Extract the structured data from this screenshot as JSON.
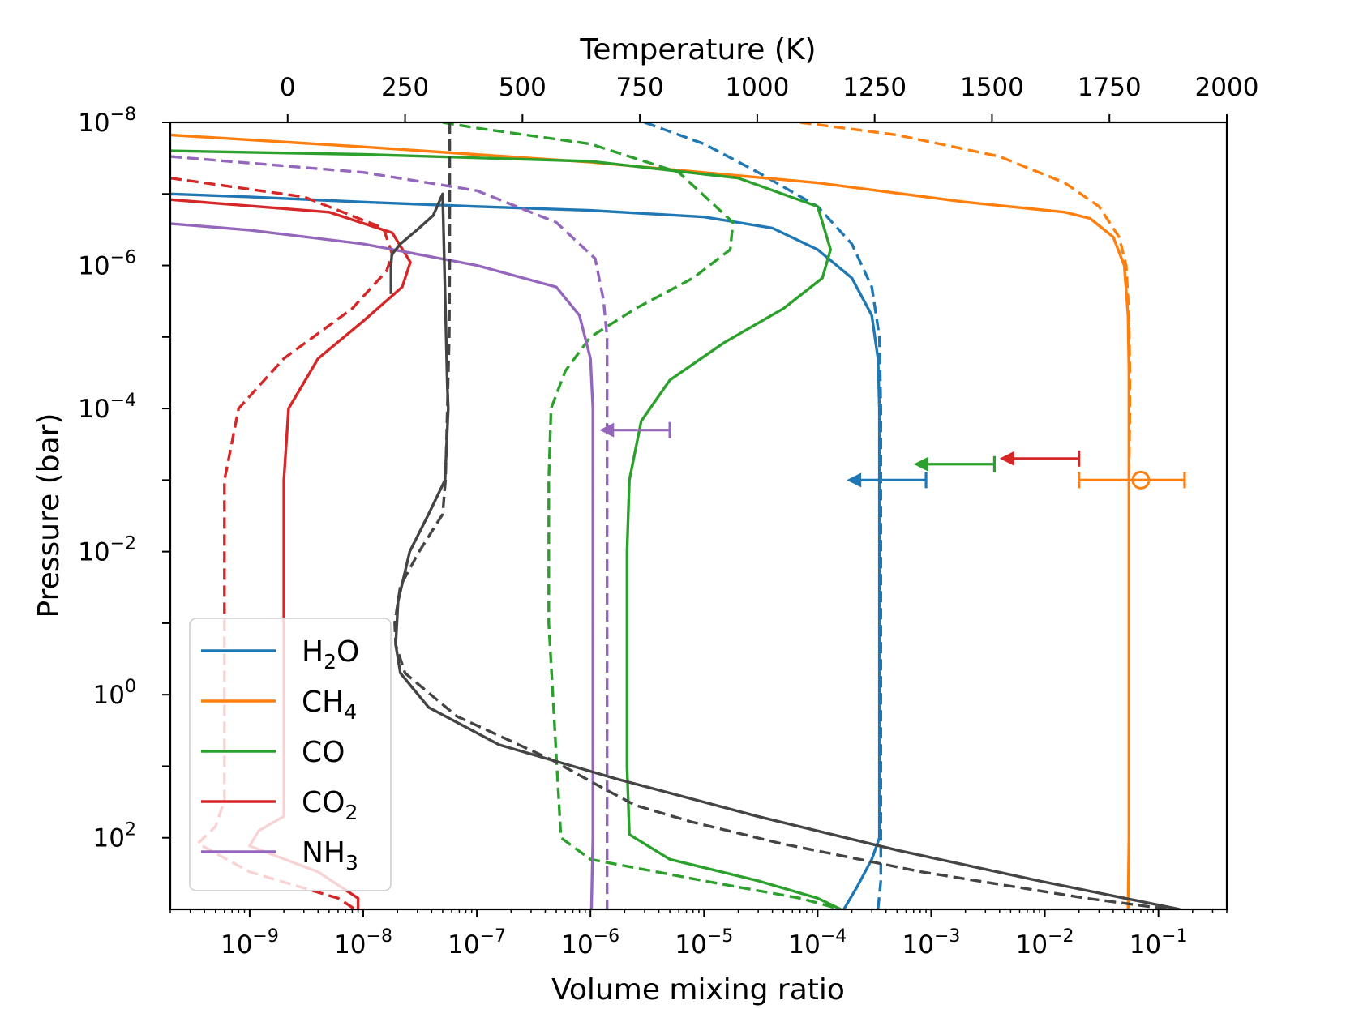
{
  "chart_data": {
    "type": "line",
    "title": "",
    "xlabel": "Volume  mixing ratio",
    "ylabel": "Pressure (bar)",
    "top_xlabel": "Temperature (K)",
    "xscale": "log",
    "yscale": "log",
    "xlim": [
      2e-10,
      0.4
    ],
    "ylim": [
      1000,
      1e-08
    ],
    "top_xlim": [
      -250,
      2000
    ],
    "x_tick_labels": [
      {
        "value": 1e-09,
        "base": "10",
        "exp": "−9"
      },
      {
        "value": 1e-08,
        "base": "10",
        "exp": "−8"
      },
      {
        "value": 1e-07,
        "base": "10",
        "exp": "−7"
      },
      {
        "value": 1e-06,
        "base": "10",
        "exp": "−6"
      },
      {
        "value": 1e-05,
        "base": "10",
        "exp": "−5"
      },
      {
        "value": 0.0001,
        "base": "10",
        "exp": "−4"
      },
      {
        "value": 0.001,
        "base": "10",
        "exp": "−3"
      },
      {
        "value": 0.01,
        "base": "10",
        "exp": "−2"
      },
      {
        "value": 0.1,
        "base": "10",
        "exp": "−1"
      }
    ],
    "y_tick_labels": [
      {
        "value": 1e-08,
        "base": "10",
        "exp": "−8"
      },
      {
        "value": 1e-06,
        "base": "10",
        "exp": "−6"
      },
      {
        "value": 0.0001,
        "base": "10",
        "exp": "−4"
      },
      {
        "value": 0.01,
        "base": "10",
        "exp": "−2"
      },
      {
        "value": 1,
        "base": "10",
        "exp": "0"
      },
      {
        "value": 100,
        "base": "10",
        "exp": "2"
      }
    ],
    "top_tick_labels": [
      {
        "value": 0,
        "label": "0"
      },
      {
        "value": 250,
        "label": "250"
      },
      {
        "value": 500,
        "label": "500"
      },
      {
        "value": 750,
        "label": "750"
      },
      {
        "value": 1000,
        "label": "1000"
      },
      {
        "value": 1250,
        "label": "1250"
      },
      {
        "value": 1500,
        "label": "1500"
      },
      {
        "value": 1750,
        "label": "1750"
      },
      {
        "value": 2000,
        "label": "2000"
      }
    ],
    "legend": {
      "position": "lower-left",
      "entries": [
        {
          "name": "H2O",
          "main": "H",
          "sub": "2",
          "rest": "O",
          "color": "#1f77b4"
        },
        {
          "name": "CH4",
          "main": "CH",
          "sub": "4",
          "rest": "",
          "color": "#ff7f0e"
        },
        {
          "name": "CO",
          "main": "CO",
          "sub": "",
          "rest": "",
          "color": "#2ca02c"
        },
        {
          "name": "CO2",
          "main": "CO",
          "sub": "2",
          "rest": "",
          "color": "#d62728"
        },
        {
          "name": "NH3",
          "main": "NH",
          "sub": "3",
          "rest": "",
          "color": "#9467bd"
        }
      ]
    },
    "series": [
      {
        "name": "H2O",
        "style": "solid",
        "color": "#1f77b4",
        "x": [
          2e-10,
          1e-09,
          1e-08,
          1e-07,
          1e-06,
          1e-05,
          4e-05,
          0.0001,
          0.0002,
          0.0003,
          0.00034,
          0.00035,
          0.00035,
          0.00035,
          0.00035,
          0.0003,
          0.00022,
          0.00017
        ],
        "p": [
          1e-07,
          1.1e-07,
          1.3e-07,
          1.5e-07,
          1.7e-07,
          2.1e-07,
          3e-07,
          6e-07,
          1.5e-06,
          5e-06,
          2e-05,
          0.0001,
          0.01,
          1,
          100,
          200,
          500,
          1000
        ]
      },
      {
        "name": "H2O",
        "style": "dashed",
        "color": "#1f77b4",
        "x": [
          3e-06,
          1e-05,
          3e-05,
          0.0001,
          0.0002,
          0.0003,
          0.00035,
          0.00036,
          0.00036,
          0.00036,
          0.00036,
          0.00036,
          0.00034
        ],
        "p": [
          1e-08,
          2e-08,
          5e-08,
          1.5e-07,
          5e-07,
          2e-06,
          1e-05,
          0.0001,
          0.01,
          1,
          100,
          400,
          1000
        ]
      },
      {
        "name": "CH4",
        "style": "solid",
        "color": "#ff7f0e",
        "x": [
          2e-10,
          1e-08,
          1e-06,
          0.0001,
          0.002,
          0.015,
          0.025,
          0.04,
          0.05,
          0.054,
          0.055,
          0.055,
          0.055,
          0.055,
          0.054
        ],
        "p": [
          1.5e-08,
          2.2e-08,
          3.6e-08,
          7e-08,
          1.3e-07,
          1.8e-07,
          2.2e-07,
          4e-07,
          1e-06,
          5e-06,
          3e-05,
          0.001,
          1,
          100,
          1000
        ]
      },
      {
        "name": "CH4",
        "style": "dashed",
        "color": "#ff7f0e",
        "x": [
          7e-05,
          0.0005,
          0.004,
          0.015,
          0.03,
          0.045,
          0.052,
          0.055,
          0.056,
          0.056,
          0.055
        ],
        "p": [
          1e-08,
          1.5e-08,
          3e-08,
          7e-08,
          1.5e-07,
          4e-07,
          1e-06,
          5e-06,
          3e-05,
          0.0001,
          0.001
        ]
      },
      {
        "name": "CO",
        "style": "solid",
        "color": "#2ca02c",
        "x": [
          2e-10,
          1e-08,
          1e-06,
          2e-05,
          0.0001,
          0.00013,
          0.00011,
          5e-05,
          1.5e-05,
          5e-06,
          2.8e-06,
          2.2e-06,
          2.1e-06,
          2.1e-06,
          2.2e-06,
          5e-06,
          3e-05,
          0.0001,
          0.00016
        ],
        "p": [
          2.5e-08,
          2.8e-08,
          3.5e-08,
          6e-08,
          1.5e-07,
          6e-07,
          1.5e-06,
          4e-06,
          1.2e-05,
          4e-05,
          0.00015,
          0.001,
          0.01,
          10,
          90,
          200,
          400,
          700,
          1000
        ]
      },
      {
        "name": "CO",
        "style": "dashed",
        "color": "#2ca02c",
        "x": [
          5e-08,
          1e-07,
          1e-06,
          6e-06,
          1.8e-05,
          1.7e-05,
          8e-06,
          2.5e-06,
          1e-06,
          6e-07,
          4.5e-07,
          4.3e-07,
          4.3e-07,
          5.5e-07,
          1e-06,
          1e-05,
          7e-05,
          0.00016
        ],
        "p": [
          1e-08,
          1.2e-08,
          2e-08,
          5e-08,
          2.5e-07,
          6e-07,
          1.5e-06,
          4e-06,
          1e-05,
          3e-05,
          0.0001,
          0.001,
          0.1,
          100,
          200,
          400,
          700,
          1000
        ]
      },
      {
        "name": "CO2",
        "style": "solid",
        "color": "#d62728",
        "x": [
          2e-10,
          5e-09,
          1.8e-08,
          2.6e-08,
          2.2e-08,
          1e-08,
          4e-09,
          2.2e-09,
          2e-09,
          2e-09,
          2e-09,
          1.2e-09,
          1e-09,
          4e-09,
          9e-09,
          9e-09
        ],
        "p": [
          1.2e-07,
          1.8e-07,
          3.5e-07,
          9e-07,
          2e-06,
          6e-06,
          2e-05,
          0.0001,
          0.001,
          0.1,
          50,
          80,
          130,
          300,
          700,
          1000
        ]
      },
      {
        "name": "CO2",
        "style": "dashed",
        "color": "#d62728",
        "x": [
          2e-10,
          3e-09,
          1.5e-08,
          1.8e-08,
          1.6e-08,
          8e-09,
          2e-09,
          8e-10,
          6e-10,
          6e-10,
          6e-10,
          5e-10,
          3.5e-10,
          1e-09,
          6e-09,
          8.5e-09
        ],
        "p": [
          6e-08,
          1.1e-07,
          3e-07,
          7e-07,
          1.2e-06,
          4e-06,
          2e-05,
          0.0001,
          0.001,
          0.1,
          30,
          70,
          120,
          300,
          700,
          1000
        ]
      },
      {
        "name": "NH3",
        "style": "solid",
        "color": "#9467bd",
        "x": [
          2e-10,
          1e-09,
          1e-08,
          1e-07,
          5e-07,
          8e-07,
          1e-06,
          1.05e-06,
          1.05e-06,
          1.05e-06,
          1.05e-06,
          1.02e-06
        ],
        "p": [
          2.6e-07,
          3.2e-07,
          5e-07,
          1e-06,
          2e-06,
          5e-06,
          2e-05,
          0.0001,
          0.01,
          1,
          100,
          1000
        ]
      },
      {
        "name": "NH3",
        "style": "dashed",
        "color": "#9467bd",
        "x": [
          2e-10,
          1e-08,
          1e-07,
          5e-07,
          1.1e-06,
          1.3e-06,
          1.4e-06,
          1.4e-06,
          1.4e-06,
          1.4e-06,
          1.4e-06
        ],
        "p": [
          3e-08,
          5e-08,
          9e-08,
          2.5e-07,
          8e-07,
          3e-06,
          1e-05,
          0.0001,
          0.01,
          10,
          1000
        ]
      }
    ],
    "temperature_profiles": [
      {
        "name": "T-profile-solid",
        "style": "solid",
        "color": "#444444",
        "T": [
          220,
          220,
          222,
          240,
          280,
          310,
          330,
          340,
          342,
          335,
          300,
          260,
          235,
          230,
          240,
          300,
          450,
          700,
          1000,
          1300,
          1600,
          1900
        ],
        "p": [
          2.5e-06,
          1e-06,
          7e-07,
          5e-07,
          3e-07,
          2e-07,
          1e-07,
          5e-05,
          0.0001,
          0.001,
          0.003,
          0.01,
          0.05,
          0.2,
          0.5,
          1.5,
          5,
          15,
          50,
          150,
          400,
          1000
        ]
      },
      {
        "name": "T-profile-dashed",
        "style": "dashed",
        "color": "#444444",
        "T": [
          345,
          345,
          345,
          344,
          340,
          336,
          330,
          280,
          240,
          228,
          230,
          250,
          360,
          560,
          670,
          740,
          860,
          1050,
          1350,
          1700,
          1880
        ],
        "p": [
          1e-08,
          1e-07,
          1e-06,
          1e-05,
          0.0001,
          0.001,
          0.003,
          0.01,
          0.03,
          0.1,
          0.2,
          0.5,
          2,
          8,
          20,
          35,
          60,
          120,
          300,
          700,
          1000
        ]
      }
    ],
    "constraints": [
      {
        "name": "NH3-upper-limit",
        "color": "#9467bd",
        "kind": "upper-limit",
        "x_cap": 5e-06,
        "x_arrow": 1.2e-06,
        "p": 0.0002
      },
      {
        "name": "H2O-upper-limit",
        "color": "#1f77b4",
        "kind": "upper-limit",
        "x_cap": 0.0009,
        "x_arrow": 0.00018,
        "p": 0.001
      },
      {
        "name": "CO-upper-limit",
        "color": "#2ca02c",
        "kind": "upper-limit",
        "x_cap": 0.0036,
        "x_arrow": 0.0007,
        "p": 0.0006
      },
      {
        "name": "CO2-upper-limit",
        "color": "#d62728",
        "kind": "upper-limit",
        "x_cap": 0.02,
        "x_arrow": 0.004,
        "p": 0.0005
      },
      {
        "name": "CH4-detection",
        "color": "#ff7f0e",
        "kind": "measurement",
        "x": 0.07,
        "x_low": 0.02,
        "x_high": 0.17,
        "p": 0.001
      }
    ]
  }
}
